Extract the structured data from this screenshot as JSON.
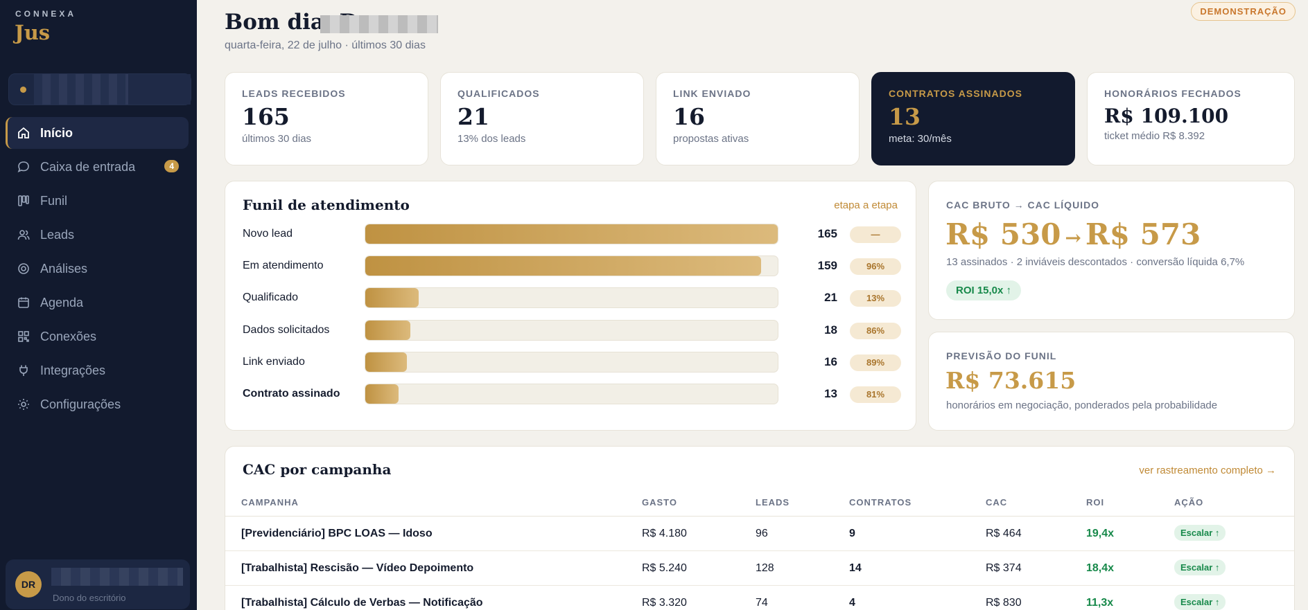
{
  "brand": {
    "top": "CONNEXA",
    "main": "Jus"
  },
  "sidebar": {
    "items": [
      {
        "label": "Início",
        "icon": "home-icon",
        "active": true
      },
      {
        "label": "Caixa de entrada",
        "icon": "chat-bubble-icon",
        "badge": "4"
      },
      {
        "label": "Funil",
        "icon": "kanban-icon"
      },
      {
        "label": "Leads",
        "icon": "users-icon"
      },
      {
        "label": "Análises",
        "icon": "target-icon"
      },
      {
        "label": "Agenda",
        "icon": "calendar-icon"
      },
      {
        "label": "Conexões",
        "icon": "qr-grid-icon"
      },
      {
        "label": "Integrações",
        "icon": "plug-icon"
      },
      {
        "label": "Configurações",
        "icon": "gear-icon"
      }
    ],
    "user": {
      "initials": "DR",
      "role": "Dono do escritório"
    }
  },
  "header": {
    "greeting": "Bom dia, D",
    "subdate": "quarta-feira, 22 de julho · últimos 30 dias",
    "demo_badge": "DEMONSTRAÇÃO"
  },
  "kpis": [
    {
      "label": "LEADS RECEBIDOS",
      "value": "165",
      "sub": "últimos 30 dias"
    },
    {
      "label": "QUALIFICADOS",
      "value": "21",
      "sub": "13% dos leads"
    },
    {
      "label": "LINK ENVIADO",
      "value": "16",
      "sub": "propostas ativas"
    },
    {
      "label": "CONTRATOS ASSINADOS",
      "value": "13",
      "sub": "meta: 30/mês"
    },
    {
      "label": "HONORÁRIOS FECHADOS",
      "value": "R$ 109.100",
      "sub": "ticket médio R$ 8.392"
    }
  ],
  "funnel": {
    "title": "Funil de atendimento",
    "link": "etapa a etapa",
    "rows": [
      {
        "label": "Novo lead",
        "count": "165",
        "pct": "—",
        "fill": 1.0
      },
      {
        "label": "Em atendimento",
        "count": "159",
        "pct": "96%",
        "fill": 0.96
      },
      {
        "label": "Qualificado",
        "count": "21",
        "pct": "13%",
        "fill": 0.13
      },
      {
        "label": "Dados solicitados",
        "count": "18",
        "pct": "86%",
        "fill": 0.11
      },
      {
        "label": "Link enviado",
        "count": "16",
        "pct": "89%",
        "fill": 0.1
      },
      {
        "label": "Contrato assinado",
        "count": "13",
        "pct": "81%",
        "fill": 0.08
      }
    ]
  },
  "cac": {
    "label": "CAC BRUTO → CAC LÍQUIDO",
    "bruto": "R$ 530",
    "arrow": "→",
    "liquido": "R$ 573",
    "sub": "13 assinados · 2 inviáveis descontados · conversão líquida 6,7%",
    "roi": "ROI 15,0x ↑"
  },
  "previsao": {
    "label": "PREVISÃO DO FUNIL",
    "value": "R$ 73.615",
    "sub": "honorários em negociação, ponderados pela probabilidade"
  },
  "campaigns": {
    "title": "CAC por campanha",
    "link": "ver rastreamento completo →",
    "headers": [
      "CAMPANHA",
      "GASTO",
      "LEADS",
      "CONTRATOS",
      "CAC",
      "ROI",
      "AÇÃO"
    ],
    "rows": [
      {
        "name": "[Previdenciário] BPC LOAS — Idoso",
        "gasto": "R$ 4.180",
        "leads": "96",
        "contratos": "9",
        "cac": "R$ 464",
        "roi": "19,4x",
        "acao": "Escalar ↑"
      },
      {
        "name": "[Trabalhista] Rescisão — Vídeo Depoimento",
        "gasto": "R$ 5.240",
        "leads": "128",
        "contratos": "14",
        "cac": "R$ 374",
        "roi": "18,4x",
        "acao": "Escalar ↑"
      },
      {
        "name": "[Trabalhista] Cálculo de Verbas — Notificação",
        "gasto": "R$ 3.320",
        "leads": "74",
        "contratos": "4",
        "cac": "R$ 830",
        "roi": "11,3x",
        "acao": "Escalar ↑"
      }
    ]
  },
  "colors": {
    "navy": "#121a2e",
    "gold": "#c79a48",
    "green": "#17894a",
    "bg": "#f3f1ec"
  }
}
